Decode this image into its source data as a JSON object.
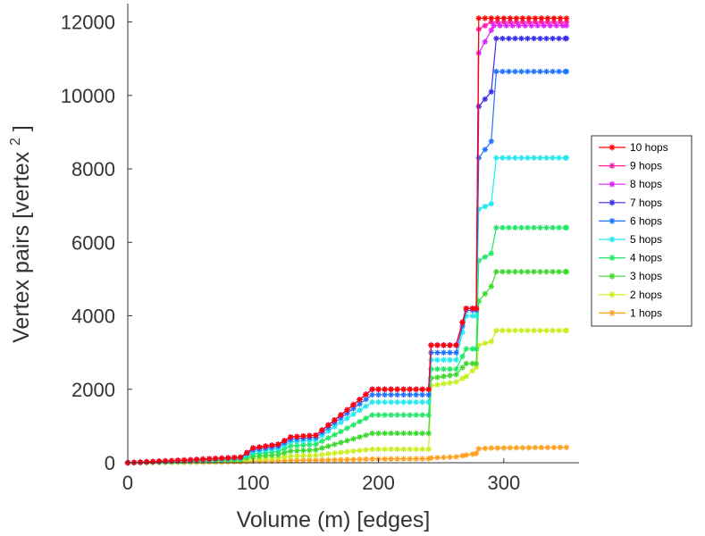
{
  "chart_data": {
    "type": "line",
    "title": "",
    "xlabel": "Volume (m) [edges]",
    "ylabel": "Vertex pairs [vertex",
    "ylabel_superscript": "2",
    "ylabel_close": "]",
    "xlim": [
      0,
      360
    ],
    "ylim": [
      0,
      12500
    ],
    "xticks": [
      0,
      100,
      200,
      300
    ],
    "yticks": [
      0,
      2000,
      4000,
      6000,
      8000,
      10000,
      12000
    ],
    "grid": false,
    "legend_position": "right",
    "marker": "asterisk",
    "series": [
      {
        "name": "10 hops",
        "color": "#ff0000",
        "points": [
          [
            0,
            0
          ],
          [
            50,
            80
          ],
          [
            90,
            150
          ],
          [
            100,
            400
          ],
          [
            120,
            500
          ],
          [
            130,
            700
          ],
          [
            150,
            750
          ],
          [
            170,
            1300
          ],
          [
            195,
            2000
          ],
          [
            240,
            2000
          ],
          [
            242,
            3200
          ],
          [
            262,
            3200
          ],
          [
            270,
            4200
          ],
          [
            278,
            4200
          ],
          [
            280,
            12100
          ],
          [
            350,
            12100
          ]
        ]
      },
      {
        "name": "9 hops",
        "color": "#ff1aaa",
        "points": [
          [
            0,
            0
          ],
          [
            50,
            80
          ],
          [
            90,
            150
          ],
          [
            100,
            400
          ],
          [
            120,
            500
          ],
          [
            130,
            700
          ],
          [
            150,
            750
          ],
          [
            170,
            1300
          ],
          [
            195,
            2000
          ],
          [
            240,
            2000
          ],
          [
            242,
            3200
          ],
          [
            262,
            3200
          ],
          [
            270,
            4200
          ],
          [
            278,
            4200
          ],
          [
            280,
            11800
          ],
          [
            290,
            12000
          ],
          [
            350,
            12000
          ]
        ]
      },
      {
        "name": "8 hops",
        "color": "#dd22ff",
        "points": [
          [
            0,
            0
          ],
          [
            50,
            80
          ],
          [
            90,
            150
          ],
          [
            100,
            400
          ],
          [
            120,
            500
          ],
          [
            130,
            700
          ],
          [
            150,
            750
          ],
          [
            170,
            1300
          ],
          [
            195,
            2000
          ],
          [
            240,
            2000
          ],
          [
            242,
            3200
          ],
          [
            262,
            3200
          ],
          [
            270,
            4200
          ],
          [
            278,
            4200
          ],
          [
            280,
            11150
          ],
          [
            292,
            11900
          ],
          [
            350,
            11900
          ]
        ]
      },
      {
        "name": "7 hops",
        "color": "#3a2ee8",
        "points": [
          [
            0,
            0
          ],
          [
            50,
            80
          ],
          [
            90,
            150
          ],
          [
            100,
            400
          ],
          [
            120,
            500
          ],
          [
            130,
            700
          ],
          [
            150,
            750
          ],
          [
            170,
            1300
          ],
          [
            195,
            2000
          ],
          [
            240,
            2000
          ],
          [
            242,
            3200
          ],
          [
            262,
            3200
          ],
          [
            270,
            4200
          ],
          [
            278,
            4200
          ],
          [
            280,
            9700
          ],
          [
            290,
            10100
          ],
          [
            294,
            11550
          ],
          [
            350,
            11550
          ]
        ]
      },
      {
        "name": "6 hops",
        "color": "#1e73ff",
        "points": [
          [
            0,
            0
          ],
          [
            50,
            70
          ],
          [
            90,
            140
          ],
          [
            100,
            350
          ],
          [
            120,
            450
          ],
          [
            130,
            640
          ],
          [
            150,
            690
          ],
          [
            170,
            1220
          ],
          [
            195,
            1850
          ],
          [
            240,
            1850
          ],
          [
            242,
            3000
          ],
          [
            262,
            3000
          ],
          [
            270,
            4150
          ],
          [
            278,
            4150
          ],
          [
            280,
            8300
          ],
          [
            290,
            8750
          ],
          [
            294,
            10650
          ],
          [
            350,
            10650
          ]
        ]
      },
      {
        "name": "5 hops",
        "color": "#22e8f0",
        "points": [
          [
            0,
            0
          ],
          [
            50,
            60
          ],
          [
            90,
            125
          ],
          [
            100,
            300
          ],
          [
            120,
            390
          ],
          [
            130,
            570
          ],
          [
            150,
            620
          ],
          [
            170,
            1100
          ],
          [
            195,
            1650
          ],
          [
            240,
            1650
          ],
          [
            242,
            2800
          ],
          [
            262,
            2800
          ],
          [
            270,
            4000
          ],
          [
            278,
            4000
          ],
          [
            280,
            6900
          ],
          [
            290,
            7050
          ],
          [
            294,
            8300
          ],
          [
            350,
            8300
          ]
        ]
      },
      {
        "name": "4 hops",
        "color": "#22e868",
        "points": [
          [
            0,
            0
          ],
          [
            50,
            50
          ],
          [
            90,
            105
          ],
          [
            100,
            240
          ],
          [
            120,
            310
          ],
          [
            130,
            460
          ],
          [
            150,
            500
          ],
          [
            170,
            850
          ],
          [
            195,
            1300
          ],
          [
            240,
            1300
          ],
          [
            242,
            2550
          ],
          [
            262,
            2550
          ],
          [
            270,
            3100
          ],
          [
            278,
            3100
          ],
          [
            280,
            5500
          ],
          [
            290,
            5700
          ],
          [
            294,
            6400
          ],
          [
            350,
            6400
          ]
        ]
      },
      {
        "name": "3 hops",
        "color": "#3ed82e",
        "points": [
          [
            0,
            0
          ],
          [
            50,
            40
          ],
          [
            90,
            80
          ],
          [
            100,
            170
          ],
          [
            120,
            220
          ],
          [
            130,
            320
          ],
          [
            150,
            350
          ],
          [
            170,
            550
          ],
          [
            195,
            800
          ],
          [
            240,
            800
          ],
          [
            242,
            2300
          ],
          [
            262,
            2400
          ],
          [
            270,
            2700
          ],
          [
            278,
            2700
          ],
          [
            280,
            4400
          ],
          [
            290,
            4800
          ],
          [
            294,
            5200
          ],
          [
            350,
            5200
          ]
        ]
      },
      {
        "name": "2 hops",
        "color": "#c8f020",
        "points": [
          [
            0,
            0
          ],
          [
            50,
            25
          ],
          [
            90,
            50
          ],
          [
            100,
            100
          ],
          [
            120,
            130
          ],
          [
            130,
            180
          ],
          [
            150,
            200
          ],
          [
            170,
            280
          ],
          [
            195,
            370
          ],
          [
            240,
            370
          ],
          [
            242,
            2100
          ],
          [
            262,
            2200
          ],
          [
            270,
            2350
          ],
          [
            278,
            2600
          ],
          [
            280,
            3200
          ],
          [
            290,
            3300
          ],
          [
            294,
            3600
          ],
          [
            350,
            3600
          ]
        ]
      },
      {
        "name": "1 hops",
        "color": "#ffa01e",
        "points": [
          [
            0,
            0
          ],
          [
            50,
            12
          ],
          [
            90,
            25
          ],
          [
            100,
            40
          ],
          [
            130,
            60
          ],
          [
            150,
            70
          ],
          [
            170,
            80
          ],
          [
            195,
            100
          ],
          [
            240,
            110
          ],
          [
            242,
            130
          ],
          [
            262,
            160
          ],
          [
            270,
            210
          ],
          [
            278,
            250
          ],
          [
            280,
            380
          ],
          [
            290,
            400
          ],
          [
            350,
            420
          ]
        ]
      }
    ]
  }
}
